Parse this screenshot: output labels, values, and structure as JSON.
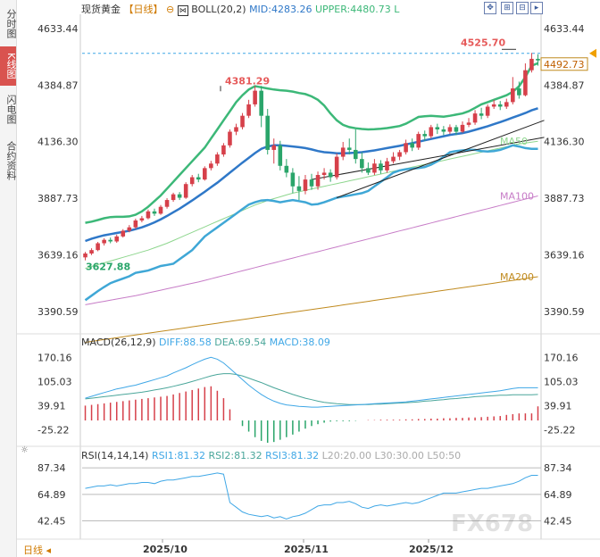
{
  "side_tabs": [
    "分时图",
    "K线图",
    "闪电图",
    "合约资料"
  ],
  "header": {
    "instrument": "现货黄金",
    "period_tag": "【日线】",
    "boll_label": "BOLL(20,2)",
    "mid": "MID:4283.26",
    "upper": "UPPER:4480.73",
    "lower_tag": "L"
  },
  "macd_header": {
    "name": "MACD(26,12,9)",
    "diff": "DIFF:88.58",
    "dea": "DEA:69.54",
    "macd": "MACD:38.09"
  },
  "rsi_header": {
    "name": "RSI(14,14,14)",
    "rsi1": "RSI1:81.32",
    "rsi2": "RSI2:81.32",
    "rsi3": "RSI3:81.32",
    "l20": "L20:20.00",
    "l30": "L30:30.00",
    "l50": "L50:50"
  },
  "bottom_tab": "日线",
  "watermark": "FX678",
  "colors": {
    "up": "#d6404a",
    "down": "#2aa56a",
    "boll_outer": "#3cb878",
    "mid": "#2f78c8",
    "ma50": "#8ed68e",
    "ma100": "#c77cc7",
    "ma200": "#c08a1e",
    "dif": "#3fa7e6",
    "dea": "#4aa69a",
    "accent": "#e65a5a"
  },
  "chart_data": [
    {
      "type": "candlestick",
      "title": "现货黄金【日线】",
      "y_ticks": [
        "4633.44",
        "4384.87",
        "4136.30",
        "3887.73",
        "3639.16",
        "3390.59"
      ],
      "x_labels": [
        "2025/10",
        "2025/11",
        "2025/12"
      ],
      "ylim": [
        3300,
        4680
      ],
      "current_price": "4492.73",
      "annotations": {
        "high_1": "4381.29",
        "high_2": "4525.70",
        "low_1": "3627.88"
      },
      "ma_labels": [
        "MA50",
        "MA100",
        "MA200"
      ],
      "candles": [
        [
          3628,
          3645,
          3615,
          3652
        ],
        [
          3645,
          3660,
          3638,
          3668
        ],
        [
          3660,
          3690,
          3655,
          3696
        ],
        [
          3690,
          3705,
          3680,
          3712
        ],
        [
          3705,
          3698,
          3690,
          3715
        ],
        [
          3698,
          3720,
          3692,
          3728
        ],
        [
          3720,
          3745,
          3715,
          3752
        ],
        [
          3745,
          3760,
          3738,
          3770
        ],
        [
          3760,
          3790,
          3752,
          3798
        ],
        [
          3790,
          3800,
          3782,
          3810
        ],
        [
          3800,
          3830,
          3795,
          3838
        ],
        [
          3830,
          3820,
          3810,
          3842
        ],
        [
          3820,
          3850,
          3815,
          3858
        ],
        [
          3850,
          3880,
          3842,
          3888
        ],
        [
          3880,
          3905,
          3872,
          3912
        ],
        [
          3905,
          3890,
          3880,
          3915
        ],
        [
          3890,
          3950,
          3885,
          3958
        ],
        [
          3950,
          3980,
          3940,
          3990
        ],
        [
          3980,
          3970,
          3958,
          3995
        ],
        [
          3970,
          4020,
          3965,
          4028
        ],
        [
          4020,
          4040,
          4010,
          4052
        ],
        [
          4040,
          4080,
          4030,
          4090
        ],
        [
          4080,
          4120,
          4070,
          4130
        ],
        [
          4120,
          4180,
          4110,
          4190
        ],
        [
          4180,
          4200,
          4165,
          4215
        ],
        [
          4200,
          4250,
          4190,
          4262
        ],
        [
          4250,
          4300,
          4240,
          4320
        ],
        [
          4300,
          4360,
          4290,
          4381
        ],
        [
          4360,
          4250,
          4200,
          4381
        ],
        [
          4250,
          4100,
          4080,
          4280
        ],
        [
          4100,
          4120,
          4040,
          4150
        ],
        [
          4120,
          4030,
          4010,
          4140
        ],
        [
          4030,
          4000,
          3980,
          4060
        ],
        [
          4000,
          3940,
          3910,
          4020
        ],
        [
          3940,
          3920,
          3880,
          3985
        ],
        [
          3920,
          3970,
          3905,
          3990
        ],
        [
          3970,
          3940,
          3925,
          3995
        ],
        [
          3940,
          3990,
          3925,
          4005
        ],
        [
          3990,
          4000,
          3970,
          4020
        ],
        [
          4000,
          3980,
          3960,
          4015
        ],
        [
          3980,
          4070,
          3970,
          4085
        ],
        [
          4070,
          4110,
          4055,
          4135
        ],
        [
          4110,
          4100,
          4080,
          4150
        ],
        [
          4100,
          4060,
          4040,
          4190
        ],
        [
          4060,
          4020,
          4000,
          4090
        ],
        [
          4020,
          4000,
          3990,
          4045
        ],
        [
          4000,
          4040,
          3990,
          4060
        ],
        [
          4040,
          4010,
          3995,
          4055
        ],
        [
          4010,
          4050,
          4000,
          4065
        ],
        [
          4050,
          4070,
          4040,
          4090
        ],
        [
          4070,
          4090,
          4055,
          4100
        ],
        [
          4090,
          4130,
          4080,
          4145
        ],
        [
          4130,
          4110,
          4095,
          4150
        ],
        [
          4110,
          4170,
          4100,
          4180
        ],
        [
          4170,
          4160,
          4140,
          4185
        ],
        [
          4160,
          4200,
          4150,
          4210
        ],
        [
          4200,
          4190,
          4170,
          4215
        ],
        [
          4190,
          4180,
          4165,
          4205
        ],
        [
          4180,
          4200,
          4170,
          4212
        ],
        [
          4200,
          4180,
          4165,
          4210
        ],
        [
          4180,
          4210,
          4175,
          4225
        ],
        [
          4210,
          4220,
          4200,
          4240
        ],
        [
          4220,
          4260,
          4210,
          4275
        ],
        [
          4260,
          4250,
          4235,
          4285
        ],
        [
          4250,
          4290,
          4240,
          4300
        ],
        [
          4290,
          4300,
          4280,
          4320
        ],
        [
          4300,
          4290,
          4275,
          4315
        ],
        [
          4290,
          4310,
          4280,
          4325
        ],
        [
          4310,
          4370,
          4300,
          4420
        ],
        [
          4370,
          4340,
          4325,
          4400
        ],
        [
          4340,
          4450,
          4335,
          4480
        ],
        [
          4450,
          4500,
          4440,
          4526
        ],
        [
          4500,
          4493,
          4470,
          4520
        ]
      ],
      "boll_upper": [
        3780,
        3785,
        3792,
        3800,
        3805,
        3806,
        3806,
        3808,
        3815,
        3830,
        3850,
        3875,
        3900,
        3930,
        3960,
        3990,
        4020,
        4050,
        4080,
        4110,
        4150,
        4190,
        4230,
        4270,
        4310,
        4340,
        4365,
        4380,
        4375,
        4370,
        4365,
        4362,
        4360,
        4356,
        4350,
        4345,
        4335,
        4320,
        4295,
        4260,
        4230,
        4210,
        4200,
        4195,
        4192,
        4190,
        4191,
        4193,
        4196,
        4200,
        4205,
        4215,
        4230,
        4245,
        4248,
        4250,
        4248,
        4246,
        4250,
        4255,
        4260,
        4270,
        4285,
        4300,
        4310,
        4320,
        4330,
        4340,
        4355,
        4380,
        4420,
        4470,
        4481
      ],
      "boll_mid": [
        3700,
        3710,
        3718,
        3725,
        3730,
        3735,
        3740,
        3745,
        3752,
        3760,
        3770,
        3782,
        3795,
        3810,
        3826,
        3842,
        3860,
        3878,
        3897,
        3916,
        3936,
        3956,
        3978,
        4000,
        4022,
        4044,
        4065,
        4086,
        4105,
        4115,
        4120,
        4120,
        4118,
        4115,
        4112,
        4108,
        4102,
        4095,
        4090,
        4088,
        4085,
        4085,
        4086,
        4088,
        4090,
        4094,
        4098,
        4103,
        4108,
        4113,
        4118,
        4124,
        4130,
        4136,
        4142,
        4148,
        4154,
        4160,
        4166,
        4170,
        4174,
        4180,
        4188,
        4196,
        4204,
        4213,
        4222,
        4232,
        4242,
        4252,
        4262,
        4274,
        4283
      ],
      "boll_lower": [
        3440,
        3460,
        3480,
        3498,
        3515,
        3525,
        3535,
        3545,
        3560,
        3565,
        3570,
        3580,
        3590,
        3595,
        3600,
        3620,
        3640,
        3660,
        3690,
        3720,
        3740,
        3760,
        3780,
        3800,
        3820,
        3840,
        3860,
        3870,
        3878,
        3880,
        3876,
        3870,
        3875,
        3880,
        3875,
        3870,
        3860,
        3862,
        3870,
        3880,
        3890,
        3895,
        3900,
        3905,
        3910,
        3920,
        3940,
        3960,
        3980,
        4000,
        4010,
        4015,
        4018,
        4020,
        4025,
        4035,
        4050,
        4070,
        4090,
        4095,
        4098,
        4100,
        4100,
        4095,
        4093,
        4095,
        4100,
        4110,
        4120,
        4115,
        4108,
        4105,
        4105
      ],
      "ma50": [
        3580,
        3588,
        3596,
        3604,
        3612,
        3620,
        3628,
        3636,
        3644,
        3652,
        3660,
        3670,
        3680,
        3690,
        3702,
        3714,
        3726,
        3738,
        3750,
        3762,
        3774,
        3786,
        3798,
        3810,
        3822,
        3834,
        3846,
        3858,
        3868,
        3878,
        3886,
        3894,
        3902,
        3910,
        3916,
        3922,
        3928,
        3934,
        3940,
        3946,
        3952,
        3958,
        3964,
        3970,
        3976,
        3982,
        3988,
        3994,
        4000,
        4006,
        4012,
        4018,
        4024,
        4030,
        4036,
        4042,
        4048,
        4054,
        4060,
        4066,
        4072,
        4078,
        4084,
        4090,
        4096,
        4102,
        4108,
        4114,
        4120,
        4126,
        4130,
        4134,
        4138
      ],
      "ma100": [
        3420,
        3425,
        3430,
        3435,
        3440,
        3445,
        3450,
        3455,
        3460,
        3466,
        3472,
        3478,
        3484,
        3490,
        3496,
        3502,
        3508,
        3514,
        3520,
        3527,
        3534,
        3541,
        3548,
        3555,
        3562,
        3569,
        3576,
        3583,
        3590,
        3597,
        3604,
        3611,
        3618,
        3625,
        3632,
        3639,
        3646,
        3653,
        3660,
        3667,
        3674,
        3681,
        3688,
        3695,
        3702,
        3709,
        3716,
        3723,
        3730,
        3737,
        3744,
        3751,
        3758,
        3765,
        3772,
        3779,
        3786,
        3793,
        3800,
        3807,
        3814,
        3821,
        3828,
        3835,
        3842,
        3849,
        3856,
        3863,
        3870,
        3877,
        3884,
        3891,
        3898
      ],
      "ma200": [
        3255,
        3259,
        3263,
        3267,
        3271,
        3275,
        3279,
        3283,
        3287,
        3291,
        3295,
        3299,
        3303,
        3307,
        3311,
        3315,
        3319,
        3323,
        3327,
        3331,
        3335,
        3339,
        3343,
        3347,
        3351,
        3355,
        3359,
        3363,
        3367,
        3371,
        3375,
        3379,
        3383,
        3387,
        3391,
        3395,
        3399,
        3403,
        3407,
        3411,
        3415,
        3419,
        3423,
        3427,
        3431,
        3435,
        3439,
        3443,
        3447,
        3451,
        3455,
        3459,
        3463,
        3467,
        3471,
        3475,
        3479,
        3483,
        3487,
        3491,
        3495,
        3499,
        3503,
        3507,
        3511,
        3515,
        3519,
        3523,
        3527,
        3531,
        3535,
        3539,
        3543
      ],
      "trendlines": [
        {
          "from": [
            40,
            3890
          ],
          "to": [
            73,
            4230
          ]
        },
        {
          "from": [
            36,
            3970
          ],
          "to": [
            73,
            4155
          ]
        }
      ]
    },
    {
      "type": "macd",
      "y_ticks": [
        "170.16",
        "105.03",
        "39.91",
        "-25.22"
      ],
      "ylim": [
        -60,
        190
      ],
      "dif": [
        60,
        65,
        70,
        75,
        80,
        85,
        88,
        92,
        95,
        100,
        105,
        110,
        115,
        120,
        128,
        135,
        142,
        150,
        158,
        165,
        170,
        165,
        155,
        140,
        125,
        110,
        95,
        82,
        70,
        60,
        52,
        46,
        42,
        40,
        38,
        37,
        36,
        36,
        37,
        38,
        39,
        40,
        41,
        42,
        43,
        44,
        45,
        46,
        47,
        48,
        49,
        50,
        52,
        54,
        56,
        58,
        60,
        62,
        64,
        66,
        68,
        70,
        72,
        74,
        76,
        78,
        80,
        83,
        86,
        88,
        88,
        88,
        88
      ],
      "dea": [
        58,
        60,
        62,
        64,
        66,
        68,
        70,
        72,
        74,
        76,
        79,
        82,
        85,
        88,
        92,
        96,
        100,
        105,
        110,
        115,
        120,
        124,
        126,
        126,
        124,
        120,
        114,
        108,
        102,
        95,
        88,
        82,
        76,
        70,
        65,
        60,
        56,
        52,
        49,
        47,
        45,
        44,
        43,
        43,
        43,
        43,
        44,
        44,
        45,
        46,
        47,
        48,
        49,
        50,
        52,
        53,
        55,
        56,
        58,
        59,
        61,
        62,
        64,
        65,
        66,
        67,
        68,
        68,
        69,
        69,
        69,
        69,
        70
      ],
      "hist": [
        40,
        42,
        44,
        46,
        48,
        50,
        52,
        54,
        56,
        58,
        60,
        62,
        64,
        66,
        70,
        74,
        78,
        82,
        86,
        90,
        92,
        80,
        60,
        30,
        0,
        -15,
        -30,
        -45,
        -55,
        -60,
        -58,
        -52,
        -45,
        -38,
        -30,
        -22,
        -15,
        -10,
        -6,
        -3,
        -2,
        -2,
        -2,
        -1,
        0,
        1,
        1,
        2,
        2,
        2,
        2,
        3,
        3,
        4,
        4,
        5,
        5,
        6,
        6,
        7,
        7,
        8,
        8,
        9,
        10,
        11,
        12,
        15,
        17,
        19,
        19,
        19,
        38
      ]
    },
    {
      "type": "rsi",
      "y_ticks": [
        "87.34",
        "64.89",
        "42.45"
      ],
      "ylim": [
        30,
        95
      ],
      "rsi": [
        70,
        71,
        72,
        72,
        73,
        72,
        73,
        74,
        74,
        75,
        75,
        74,
        76,
        77,
        77,
        78,
        79,
        80,
        80,
        81,
        82,
        83,
        82,
        58,
        54,
        50,
        48,
        47,
        46,
        47,
        45,
        46,
        44,
        46,
        47,
        49,
        52,
        55,
        56,
        56,
        58,
        58,
        59,
        57,
        54,
        53,
        55,
        56,
        55,
        56,
        57,
        58,
        57,
        58,
        60,
        62,
        64,
        66,
        66,
        66,
        67,
        68,
        69,
        70,
        70,
        71,
        72,
        73,
        74,
        76,
        79,
        81,
        81
      ]
    }
  ]
}
